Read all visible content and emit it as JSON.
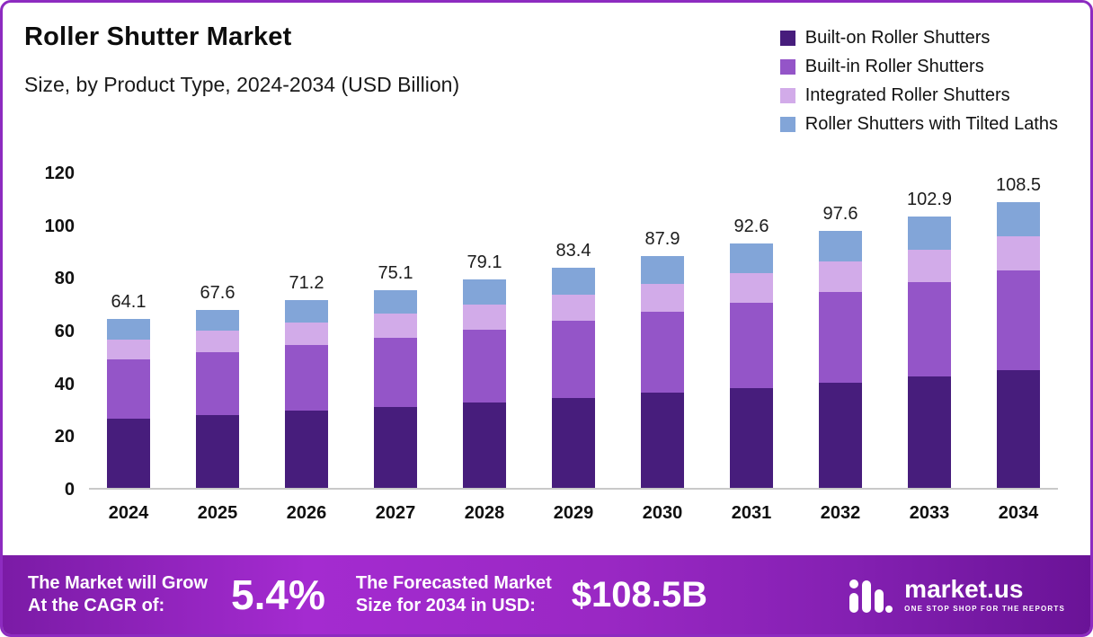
{
  "header": {
    "title": "Roller Shutter Market",
    "subtitle": "Size, by Product Type, 2024-2034 (USD Billion)"
  },
  "chart_data": {
    "type": "bar",
    "stacked": true,
    "title": "Roller Shutter Market Size, by Product Type, 2024-2034 (USD Billion)",
    "categories": [
      "2024",
      "2025",
      "2026",
      "2027",
      "2028",
      "2029",
      "2030",
      "2031",
      "2032",
      "2033",
      "2034"
    ],
    "totals": [
      "64.1",
      "67.6",
      "71.2",
      "75.1",
      "79.1",
      "83.4",
      "87.9",
      "92.6",
      "97.6",
      "102.9",
      "108.5"
    ],
    "series": [
      {
        "key": "built-on",
        "name": "Built-on Roller Shutters",
        "color": "#471d7c",
        "values": [
          26.3,
          27.7,
          29.2,
          30.8,
          32.4,
          34.2,
          36.0,
          38.0,
          40.0,
          42.2,
          44.5
        ]
      },
      {
        "key": "built-in",
        "name": "Built-in Roller Shutters",
        "color": "#9455c8",
        "values": [
          22.4,
          23.7,
          24.9,
          26.3,
          27.7,
          29.2,
          30.8,
          32.4,
          34.2,
          36.0,
          38.0
        ]
      },
      {
        "key": "integrated",
        "name": "Integrated Roller Shutters",
        "color": "#d2abe9",
        "values": [
          7.7,
          8.1,
          8.5,
          9.0,
          9.5,
          10.0,
          10.5,
          11.1,
          11.7,
          12.3,
          13.0
        ]
      },
      {
        "key": "tilted-laths",
        "name": "Roller Shutters with Tilted Laths",
        "color": "#82a5d8",
        "values": [
          7.7,
          8.1,
          8.6,
          9.0,
          9.5,
          10.0,
          10.6,
          11.1,
          11.7,
          12.4,
          13.0
        ]
      }
    ],
    "xlabel": "",
    "ylabel": "",
    "ylim": [
      0,
      120
    ],
    "yticks": [
      0,
      20,
      40,
      60,
      80,
      100,
      120
    ],
    "grid": false,
    "legend_position": "top-right"
  },
  "banner": {
    "cagr_label_line1": "The Market will Grow",
    "cagr_label_line2": "At the CAGR of:",
    "cagr_value": "5.4%",
    "forecast_label_line1": "The Forecasted Market",
    "forecast_label_line2": "Size for 2034 in USD:",
    "forecast_value": "$108.5B",
    "logo_text": "market.us",
    "logo_tagline": "ONE STOP SHOP FOR THE REPORTS"
  },
  "colors": {
    "frame_border": "#8d2bc0",
    "banner_gradient_mid": "#a42bd0",
    "banner_gradient_edge": "#6a1397",
    "axis_line": "#c9c9c9"
  }
}
